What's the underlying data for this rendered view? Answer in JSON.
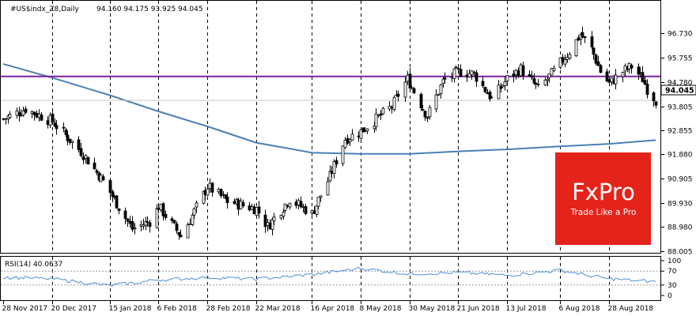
{
  "chart_data": {
    "type": "candlestick",
    "symbol_header": "#US$indx_Z8,Daily",
    "ohlc_header": "94.160 94.175 93.925 94.045",
    "last_price_label": "94.045",
    "price_axis": {
      "ticks": [
        "96.730",
        "95.755",
        "94.780",
        "93.805",
        "92.855",
        "91.880",
        "90.905",
        "89.930",
        "88.980",
        "88.005"
      ],
      "ylim": [
        88.005,
        97.3
      ]
    },
    "x_axis": {
      "ticks": [
        "28 Nov 2017",
        "20 Dec 2017",
        "15 Jan 2018",
        "6 Feb 2018",
        "28 Feb 2018",
        "22 Mar 2018",
        "16 Apr 2018",
        "8 May 2018",
        "30 May 2018",
        "21 Jun 2018",
        "13 Jul 2018",
        "6 Aug 2018",
        "28 Aug 2018"
      ]
    },
    "price_series": [
      {
        "date": "2017-11-28",
        "close": 93.3
      },
      {
        "date": "2017-12-08",
        "close": 93.7
      },
      {
        "date": "2017-12-20",
        "close": 93.2
      },
      {
        "date": "2018-01-02",
        "close": 92.0
      },
      {
        "date": "2018-01-12",
        "close": 90.8
      },
      {
        "date": "2018-01-25",
        "close": 88.9
      },
      {
        "date": "2018-02-02",
        "close": 89.2
      },
      {
        "date": "2018-02-06",
        "close": 89.8
      },
      {
        "date": "2018-02-16",
        "close": 88.6
      },
      {
        "date": "2018-02-28",
        "close": 90.6
      },
      {
        "date": "2018-03-09",
        "close": 90.0
      },
      {
        "date": "2018-03-22",
        "close": 89.7
      },
      {
        "date": "2018-03-27",
        "close": 89.0
      },
      {
        "date": "2018-04-06",
        "close": 90.1
      },
      {
        "date": "2018-04-16",
        "close": 89.5
      },
      {
        "date": "2018-04-24",
        "close": 91.0
      },
      {
        "date": "2018-05-01",
        "close": 92.5
      },
      {
        "date": "2018-05-08",
        "close": 92.8
      },
      {
        "date": "2018-05-22",
        "close": 93.8
      },
      {
        "date": "2018-05-29",
        "close": 94.9
      },
      {
        "date": "2018-06-07",
        "close": 93.4
      },
      {
        "date": "2018-06-14",
        "close": 94.8
      },
      {
        "date": "2018-06-21",
        "close": 95.2
      },
      {
        "date": "2018-06-28",
        "close": 95.1
      },
      {
        "date": "2018-07-06",
        "close": 94.1
      },
      {
        "date": "2018-07-13",
        "close": 94.9
      },
      {
        "date": "2018-07-19",
        "close": 95.3
      },
      {
        "date": "2018-07-27",
        "close": 94.5
      },
      {
        "date": "2018-08-03",
        "close": 95.2
      },
      {
        "date": "2018-08-10",
        "close": 96.0
      },
      {
        "date": "2018-08-15",
        "close": 96.7
      },
      {
        "date": "2018-08-20",
        "close": 96.1
      },
      {
        "date": "2018-08-24",
        "close": 95.2
      },
      {
        "date": "2018-08-28",
        "close": 94.7
      },
      {
        "date": "2018-09-03",
        "close": 95.2
      },
      {
        "date": "2018-09-07",
        "close": 95.4
      },
      {
        "date": "2018-09-12",
        "close": 94.9
      },
      {
        "date": "2018-09-14",
        "close": 94.5
      },
      {
        "date": "2018-09-18",
        "close": 94.045
      }
    ],
    "moving_average": [
      {
        "date": "2017-11-28",
        "value": 95.5
      },
      {
        "date": "2017-12-20",
        "value": 94.95
      },
      {
        "date": "2018-01-15",
        "value": 94.25
      },
      {
        "date": "2018-02-06",
        "value": 93.6
      },
      {
        "date": "2018-02-28",
        "value": 93.0
      },
      {
        "date": "2018-03-22",
        "value": 92.35
      },
      {
        "date": "2018-04-16",
        "value": 91.95
      },
      {
        "date": "2018-05-08",
        "value": 91.9
      },
      {
        "date": "2018-05-30",
        "value": 91.9
      },
      {
        "date": "2018-06-21",
        "value": 92.0
      },
      {
        "date": "2018-07-13",
        "value": 92.08
      },
      {
        "date": "2018-08-06",
        "value": 92.2
      },
      {
        "date": "2018-08-28",
        "value": 92.3
      },
      {
        "date": "2018-09-18",
        "value": 92.45
      }
    ],
    "horizontal_level": 95.0,
    "rsi": {
      "label": "RSI(14) 40.0637",
      "ticks": [
        "100",
        "70",
        "30",
        "0"
      ],
      "levels": [
        70,
        30
      ],
      "series": [
        {
          "date": "2017-11-28",
          "value": 52
        },
        {
          "date": "2017-12-20",
          "value": 48
        },
        {
          "date": "2018-01-15",
          "value": 28
        },
        {
          "date": "2018-02-06",
          "value": 45
        },
        {
          "date": "2018-02-28",
          "value": 52
        },
        {
          "date": "2018-03-22",
          "value": 47
        },
        {
          "date": "2018-04-16",
          "value": 60
        },
        {
          "date": "2018-05-08",
          "value": 78
        },
        {
          "date": "2018-05-30",
          "value": 62
        },
        {
          "date": "2018-06-21",
          "value": 66
        },
        {
          "date": "2018-07-13",
          "value": 58
        },
        {
          "date": "2018-08-06",
          "value": 72
        },
        {
          "date": "2018-08-28",
          "value": 48
        },
        {
          "date": "2018-09-18",
          "value": 40
        }
      ]
    }
  },
  "logo": {
    "brand": "FxPro",
    "tagline": "Trade Like a Pro"
  },
  "colors": {
    "bull_candle": "#ffffff",
    "bear_candle": "#000000",
    "moving_average": "#4a7fb5",
    "level_line": "#7b1fa2",
    "rsi_line": "#4a90d9",
    "logo_bg": "#e5231b"
  }
}
